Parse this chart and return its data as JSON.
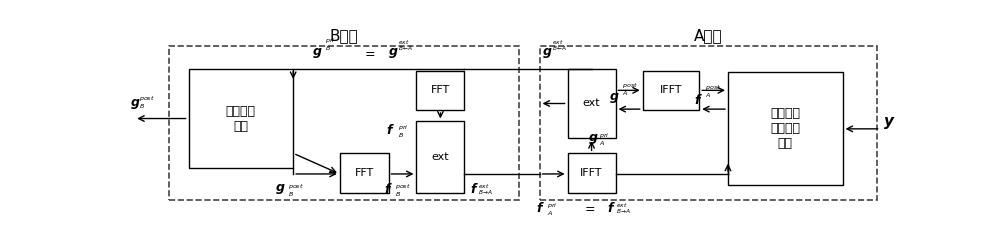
{
  "fig_width": 10.0,
  "fig_height": 2.44,
  "dpi": 100,
  "B_module_label": "B模块",
  "A_module_label": "A模块",
  "sparse_label": "稀疏处理\n模块",
  "lms_label": "线性最小\n方差处理\n模块"
}
